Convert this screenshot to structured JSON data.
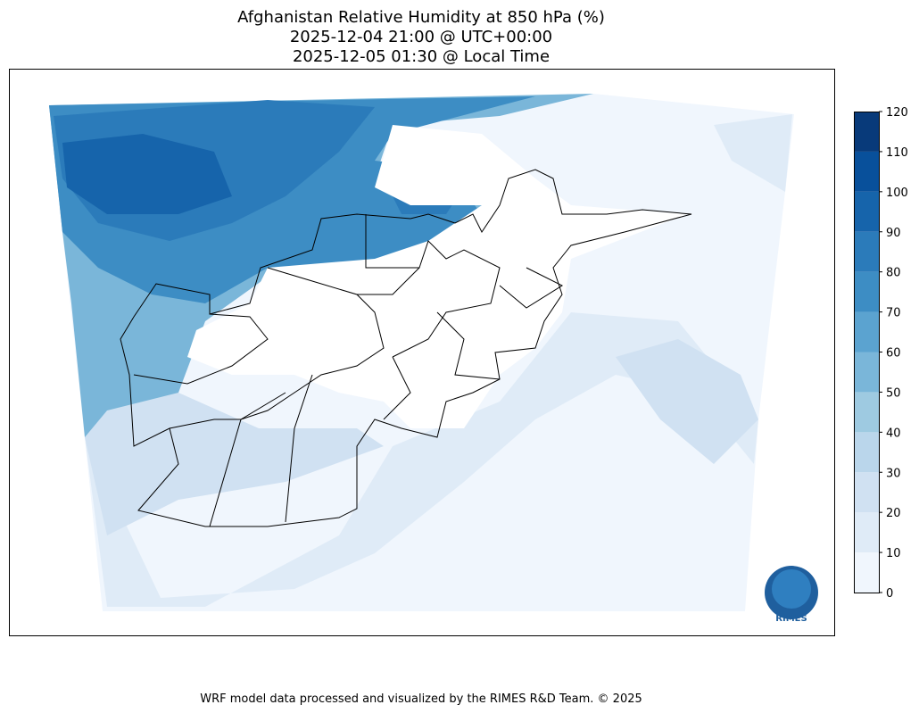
{
  "title": [
    "Afghanistan Relative Humidity at 850 hPa (%)",
    "2025-12-04 21:00 @ UTC+00:00",
    "2025-12-05 01:30 @ Local Time"
  ],
  "colorbar": {
    "ticks": [
      0,
      10,
      20,
      30,
      40,
      50,
      60,
      70,
      80,
      90,
      100,
      110,
      120
    ],
    "colors": [
      "#f0f6fd",
      "#dfebf7",
      "#d0e1f2",
      "#bad6eb",
      "#9ecae1",
      "#7ab6d9",
      "#5ba3d0",
      "#3d8dc4",
      "#2b7bba",
      "#1664ab",
      "#08509b",
      "#083a7a"
    ]
  },
  "logo": "RIMES",
  "footer": "WRF model data processed and visualized by the RIMES R&D Team. © 2025"
}
